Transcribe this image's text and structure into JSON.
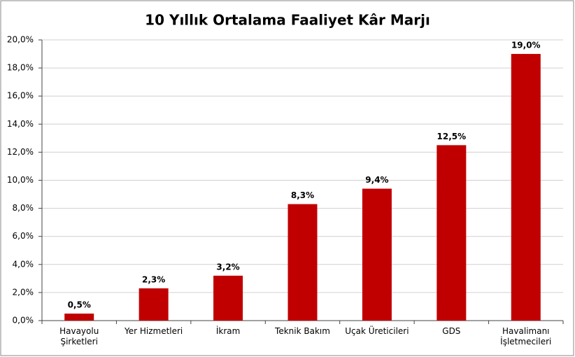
{
  "chart_data": {
    "type": "bar",
    "title": "10 Yıllık Ortalama Faaliyet Kâr Marjı",
    "categories": [
      "Havayolu\nŞirketleri",
      "Yer Hizmetleri",
      "İkram",
      "Teknik Bakım",
      "Uçak Üreticileri",
      "GDS",
      "Havalimanı\nİşletmecileri"
    ],
    "values": [
      0.5,
      2.3,
      3.2,
      8.3,
      9.4,
      12.5,
      19.0
    ],
    "value_labels": [
      "0,5%",
      "2,3%",
      "3,2%",
      "8,3%",
      "9,4%",
      "12,5%",
      "19,0%"
    ],
    "color": "#c00000",
    "ylim": [
      0,
      20
    ],
    "yticks": [
      {
        "value": 0,
        "label": "0,0%"
      },
      {
        "value": 2,
        "label": "2,0%"
      },
      {
        "value": 4,
        "label": "4,0%"
      },
      {
        "value": 6,
        "label": "6,0%"
      },
      {
        "value": 8,
        "label": "8,0%"
      },
      {
        "value": 10,
        "label": "10,0%"
      },
      {
        "value": 12,
        "label": "12,0%"
      },
      {
        "value": 14,
        "label": "14,0%"
      },
      {
        "value": 16,
        "label": "16,0%"
      },
      {
        "value": 18,
        "label": "18,0%"
      },
      {
        "value": 20,
        "label": "20,0%"
      }
    ],
    "grid": true
  }
}
